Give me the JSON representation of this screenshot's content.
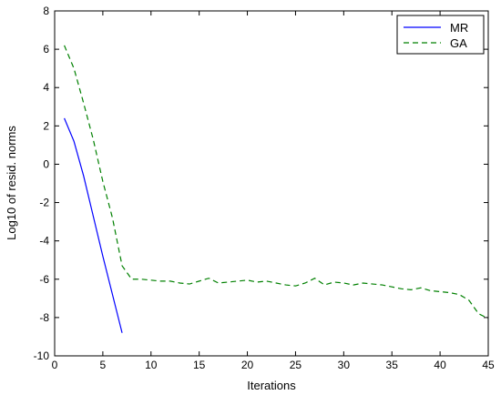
{
  "chart_data": {
    "type": "line",
    "xlabel": "Iterations",
    "ylabel": "Log10 of resid. norms",
    "xlim": [
      0,
      45
    ],
    "ylim": [
      -10,
      8
    ],
    "xticks": [
      0,
      5,
      10,
      15,
      20,
      25,
      30,
      35,
      40,
      45
    ],
    "yticks": [
      -10,
      -8,
      -6,
      -4,
      -2,
      0,
      2,
      4,
      6,
      8
    ],
    "grid": false,
    "legend_position": "top-right",
    "series": [
      {
        "name": "MR",
        "color": "#0000ff",
        "dash": "solid",
        "x": [
          1,
          2,
          3,
          4,
          5,
          6,
          7
        ],
        "y": [
          2.4,
          1.2,
          -0.6,
          -2.7,
          -4.8,
          -6.8,
          -8.8
        ]
      },
      {
        "name": "GA",
        "color": "#008000",
        "dash": "dashed",
        "x": [
          1,
          2,
          3,
          4,
          5,
          6,
          7,
          8,
          9,
          10,
          11,
          12,
          13,
          14,
          15,
          16,
          17,
          18,
          19,
          20,
          21,
          22,
          23,
          24,
          25,
          26,
          27,
          28,
          29,
          30,
          31,
          32,
          33,
          34,
          35,
          36,
          37,
          38,
          39,
          40,
          41,
          42,
          43,
          44,
          45
        ],
        "y": [
          6.2,
          5.0,
          3.2,
          1.3,
          -0.9,
          -2.8,
          -5.3,
          -6.0,
          -6.0,
          -6.05,
          -6.1,
          -6.1,
          -6.2,
          -6.25,
          -6.1,
          -5.95,
          -6.2,
          -6.15,
          -6.1,
          -6.05,
          -6.15,
          -6.1,
          -6.2,
          -6.3,
          -6.35,
          -6.2,
          -5.95,
          -6.3,
          -6.15,
          -6.2,
          -6.3,
          -6.2,
          -6.25,
          -6.3,
          -6.4,
          -6.5,
          -6.55,
          -6.45,
          -6.6,
          -6.65,
          -6.7,
          -6.8,
          -7.1,
          -7.8,
          -8.05
        ]
      }
    ]
  }
}
